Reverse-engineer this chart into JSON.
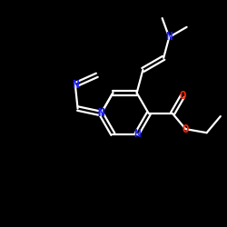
{
  "background_color": "#000000",
  "bond_color": "#ffffff",
  "N_color": "#1a1aff",
  "O_color": "#ff2200",
  "line_width": 1.6,
  "font_size": 9,
  "figsize": [
    2.5,
    2.5
  ],
  "dpi": 100,
  "xlim": [
    0,
    10
  ],
  "ylim": [
    0,
    10
  ]
}
